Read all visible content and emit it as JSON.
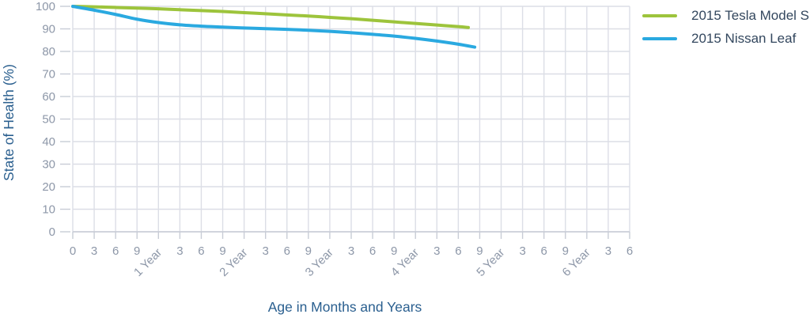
{
  "chart_data": {
    "type": "line",
    "title": "",
    "xlabel": "Age in Months and Years",
    "ylabel": "State of Health (%)",
    "x_unit": "months",
    "xlim": [
      0,
      78
    ],
    "ylim": [
      0,
      100
    ],
    "grid": true,
    "legend_position": "top-right",
    "x_tick_labels": [
      "0",
      "3",
      "6",
      "9",
      "1 Year",
      "3",
      "6",
      "9",
      "2 Year",
      "3",
      "6",
      "9",
      "3 Year",
      "3",
      "6",
      "9",
      "4 Year",
      "3",
      "6",
      "9",
      "5 Year",
      "3",
      "6",
      "9",
      "6 Year",
      "3",
      "6"
    ],
    "x_tick_step_months": 3,
    "y_ticks": [
      0,
      10,
      20,
      30,
      40,
      50,
      60,
      70,
      80,
      90,
      100
    ],
    "series": [
      {
        "name": "2015 Tesla Model S",
        "color": "#9dc43c",
        "x": [
          0,
          3,
          6,
          9,
          12,
          15,
          18,
          21,
          24,
          27,
          30,
          33,
          36,
          39,
          42,
          45,
          48,
          51,
          54,
          55.4
        ],
        "values": [
          100,
          99.8,
          99.5,
          99.2,
          98.9,
          98.5,
          98.1,
          97.7,
          97.2,
          96.7,
          96.2,
          95.7,
          95.1,
          94.5,
          93.8,
          93.1,
          92.4,
          91.7,
          91.0,
          90.6
        ]
      },
      {
        "name": "2015 Nissan Leaf",
        "color": "#2aa9e0",
        "x": [
          0,
          3,
          6,
          9,
          12,
          15,
          18,
          21,
          24,
          27,
          30,
          33,
          36,
          39,
          42,
          45,
          48,
          51,
          54,
          56.3
        ],
        "values": [
          100,
          98.3,
          96.4,
          94.3,
          92.8,
          91.8,
          91.2,
          90.8,
          90.4,
          90.1,
          89.8,
          89.4,
          88.9,
          88.3,
          87.6,
          86.8,
          85.8,
          84.6,
          83.2,
          81.9
        ]
      }
    ],
    "style": {
      "gridline_color": "#dcdee6",
      "tick_mark_color": "#c8ccd6",
      "tick_label_color": "#8d97a8",
      "axis_title_color": "#2a5f8f",
      "legend_text_color": "#33475e",
      "background_color": "#ffffff"
    }
  }
}
